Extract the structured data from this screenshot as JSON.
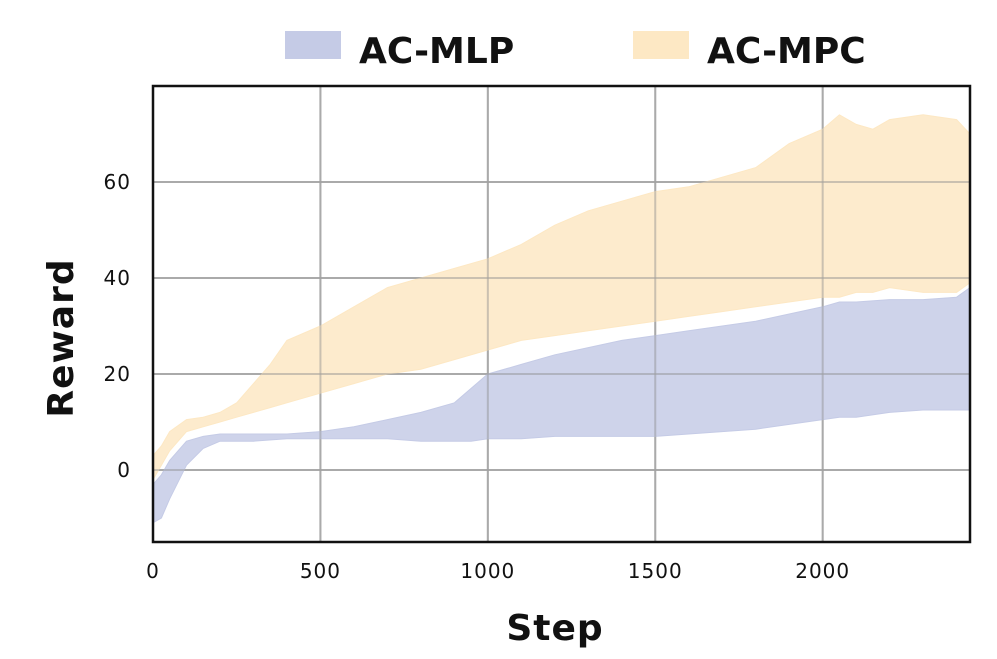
{
  "chart_data": {
    "type": "area",
    "xlabel": "Step",
    "ylabel": "Reward",
    "xlim": [
      0,
      2440
    ],
    "ylim": [
      -15,
      80
    ],
    "xticks": [
      0,
      500,
      1000,
      1500,
      2000
    ],
    "yticks": [
      0,
      20,
      40,
      60
    ],
    "grid": true,
    "legend_position": "top",
    "series": [
      {
        "name": "AC-MLP",
        "color": "#c5cbe6",
        "x": [
          0,
          25,
          50,
          100,
          150,
          200,
          250,
          300,
          400,
          500,
          600,
          700,
          800,
          900,
          950,
          1000,
          1100,
          1200,
          1300,
          1400,
          1500,
          1600,
          1700,
          1800,
          1900,
          2000,
          2050,
          2100,
          2200,
          2300,
          2400,
          2440
        ],
        "upper": [
          -3,
          -1,
          2,
          6,
          7,
          7.5,
          7.5,
          7.5,
          7.5,
          8,
          9,
          10.5,
          12,
          14,
          17,
          20,
          22,
          24,
          25.5,
          27,
          28,
          29,
          30,
          31,
          32.5,
          34,
          35,
          35,
          35.5,
          35.5,
          36,
          38
        ],
        "lower": [
          -11,
          -10,
          -6,
          1,
          4.5,
          6,
          6,
          6,
          6.5,
          6.5,
          6.5,
          6.5,
          6,
          6,
          6,
          6.5,
          6.5,
          7,
          7,
          7,
          7,
          7.5,
          8,
          8.5,
          9.5,
          10.5,
          11,
          11,
          12,
          12.5,
          12.5,
          12.5
        ]
      },
      {
        "name": "AC-MPC",
        "color": "#fde8c4",
        "x": [
          0,
          25,
          50,
          100,
          150,
          200,
          250,
          300,
          350,
          400,
          500,
          600,
          700,
          800,
          900,
          1000,
          1100,
          1200,
          1300,
          1400,
          1500,
          1600,
          1700,
          1800,
          1900,
          2000,
          2050,
          2100,
          2150,
          2200,
          2300,
          2400,
          2440
        ],
        "upper": [
          3,
          5,
          8,
          10.5,
          11,
          12,
          14,
          18,
          22,
          27,
          30,
          34,
          38,
          40,
          42,
          44,
          47,
          51,
          54,
          56,
          58,
          59,
          61,
          63,
          68,
          71,
          74,
          72,
          71,
          73,
          74,
          73,
          70
        ],
        "lower": [
          -2,
          1,
          4,
          8,
          9,
          10,
          11,
          12,
          13,
          14,
          16,
          18,
          20,
          21,
          23,
          25,
          27,
          28,
          29,
          30,
          31,
          32,
          33,
          34,
          35,
          36,
          36,
          37,
          37,
          38,
          37,
          37,
          39
        ]
      }
    ]
  }
}
